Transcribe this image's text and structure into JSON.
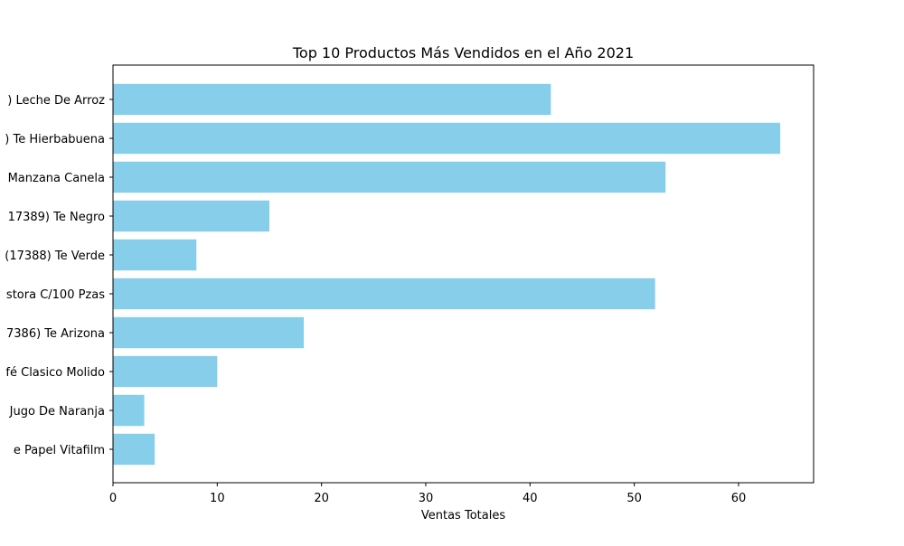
{
  "chart_data": {
    "type": "bar",
    "orientation": "horizontal",
    "title": "Top 10 Productos Más Vendidos en el Año 2021",
    "xlabel": "Ventas Totales",
    "ylabel": "",
    "xlim": [
      0,
      67.2
    ],
    "xticks": [
      0,
      10,
      20,
      30,
      40,
      50,
      60
    ],
    "categories": [
      ") Leche De Arroz",
      ") Te Hierbabuena",
      "Manzana Canela",
      "17389) Te Negro",
      "(17388) Te Verde",
      "stora C/100 Pzas",
      "7386) Te Arizona ",
      "fé Clasico Molido",
      "Jugo De Naranja",
      "e Papel Vitafilm  "
    ],
    "values": [
      42,
      64,
      53,
      15,
      8,
      52,
      18.3,
      10,
      3,
      4
    ],
    "bar_color": "#87ceeb",
    "grid": false,
    "legend": "none"
  }
}
